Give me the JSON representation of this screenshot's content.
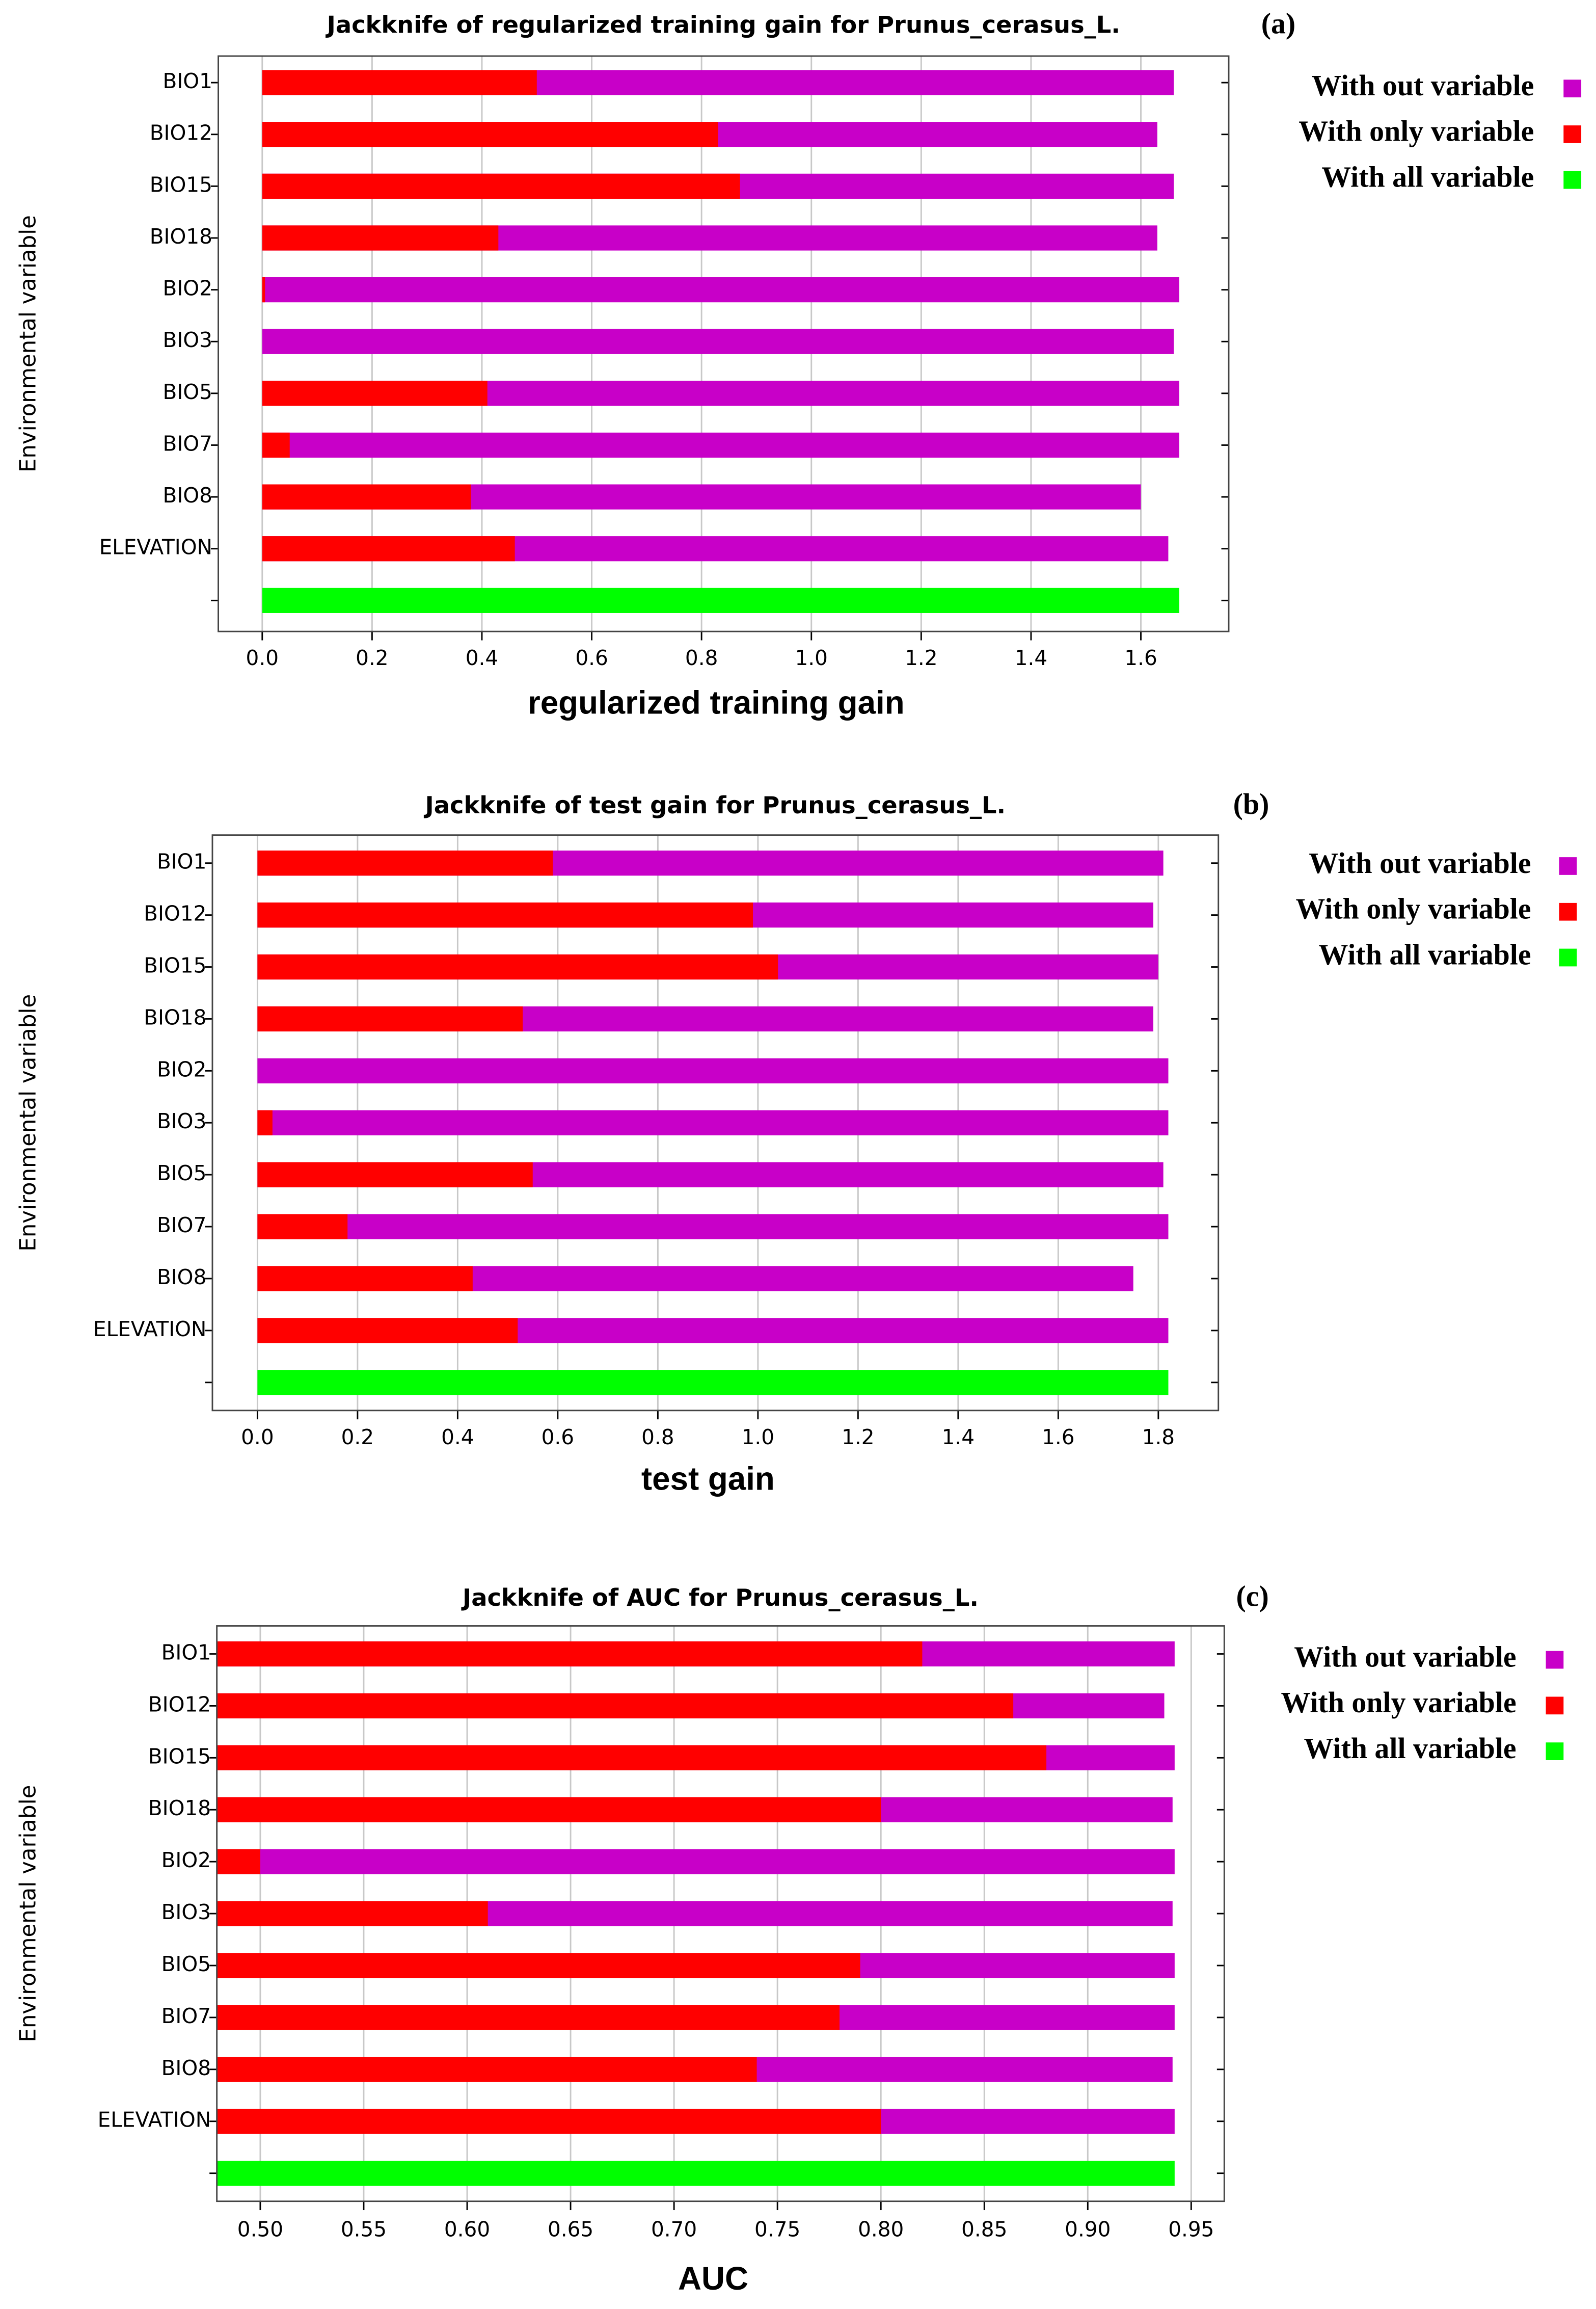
{
  "chart_data": [
    {
      "type": "hbar",
      "title": "Jackknife of regularized training gain for Prunus_cerasus_L.",
      "panel_label": "(a)",
      "xlabel": "regularized training gain",
      "ylabel": "Environmental variable",
      "categories": [
        "BIO1",
        "BIO12",
        "BIO15",
        "BIO18",
        "BIO2",
        "BIO3",
        "BIO5",
        "BIO7",
        "BIO8",
        "ELEVATION",
        null
      ],
      "series": [
        {
          "name": "With out variable",
          "color": "#c800c8",
          "values": [
            1.66,
            1.63,
            1.66,
            1.63,
            1.67,
            1.66,
            1.67,
            1.67,
            1.6,
            1.65,
            null
          ]
        },
        {
          "name": "With only variable",
          "color": "#ff0000",
          "values": [
            0.5,
            0.83,
            0.87,
            0.43,
            0.005,
            0,
            0.41,
            0.05,
            0.38,
            0.46,
            null
          ]
        },
        {
          "name": "With all variable",
          "color": "#00ff00",
          "values": [
            null,
            null,
            null,
            null,
            null,
            null,
            null,
            null,
            null,
            null,
            1.67
          ]
        }
      ],
      "xlim": [
        -0.08,
        1.76
      ],
      "xticks": [
        {
          "value": 0,
          "label": "0.0"
        },
        0.2,
        0.4,
        0.6,
        0.8,
        {
          "value": 1,
          "label": "1.0"
        },
        1.2,
        1.4,
        1.6
      ],
      "grid": true
    },
    {
      "type": "hbar",
      "title": "Jackknife of test gain for Prunus_cerasus_L.",
      "panel_label": "(b)",
      "xlabel": "test gain",
      "ylabel": "Environmental variable",
      "categories": [
        "BIO1",
        "BIO12",
        "BIO15",
        "BIO18",
        "BIO2",
        "BIO3",
        "BIO5",
        "BIO7",
        "BIO8",
        "ELEVATION",
        null
      ],
      "series": [
        {
          "name": "With out variable",
          "color": "#c800c8",
          "values": [
            1.81,
            1.79,
            1.8,
            1.79,
            1.82,
            1.82,
            1.81,
            1.82,
            1.75,
            1.82,
            null
          ]
        },
        {
          "name": "With only variable",
          "color": "#ff0000",
          "values": [
            0.59,
            0.99,
            1.04,
            0.53,
            0,
            0.03,
            0.55,
            0.18,
            0.43,
            0.52,
            null
          ]
        },
        {
          "name": "With all variable",
          "color": "#00ff00",
          "values": [
            null,
            null,
            null,
            null,
            null,
            null,
            null,
            null,
            null,
            null,
            1.82
          ]
        }
      ],
      "xlim": [
        -0.09,
        1.92
      ],
      "xticks": [
        {
          "value": 0,
          "label": "0.0"
        },
        0.2,
        0.4,
        0.6,
        0.8,
        {
          "value": 1,
          "label": "1.0"
        },
        1.2,
        1.4,
        1.6,
        1.8
      ],
      "grid": true
    },
    {
      "type": "hbar",
      "title": "Jackknife of AUC for Prunus_cerasus_L.",
      "panel_label": "(c)",
      "xlabel": "AUC",
      "ylabel": "Environmental variable",
      "categories": [
        "BIO1",
        "BIO12",
        "BIO15",
        "BIO18",
        "BIO2",
        "BIO3",
        "BIO5",
        "BIO7",
        "BIO8",
        "ELEVATION",
        null
      ],
      "series": [
        {
          "name": "With out variable",
          "color": "#c800c8",
          "values": [
            0.942,
            0.937,
            0.942,
            0.941,
            0.942,
            0.941,
            0.942,
            0.942,
            0.941,
            0.942,
            null
          ]
        },
        {
          "name": "With only variable",
          "color": "#ff0000",
          "values": [
            0.82,
            0.864,
            0.88,
            0.8,
            0.5,
            0.61,
            0.79,
            0.78,
            0.74,
            0.8,
            null
          ]
        },
        {
          "name": "With all variable",
          "color": "#00ff00",
          "values": [
            null,
            null,
            null,
            null,
            null,
            null,
            null,
            null,
            null,
            null,
            0.942
          ]
        }
      ],
      "xlim": [
        0.479,
        0.966
      ],
      "xticks": [
        {
          "value": 0.5,
          "label": "0.50"
        },
        0.55,
        {
          "value": 0.6,
          "label": "0.60"
        },
        0.65,
        {
          "value": 0.7,
          "label": "0.70"
        },
        0.75,
        {
          "value": 0.8,
          "label": "0.80"
        },
        0.85,
        {
          "value": 0.9,
          "label": "0.90"
        },
        0.95
      ],
      "grid": true
    }
  ]
}
